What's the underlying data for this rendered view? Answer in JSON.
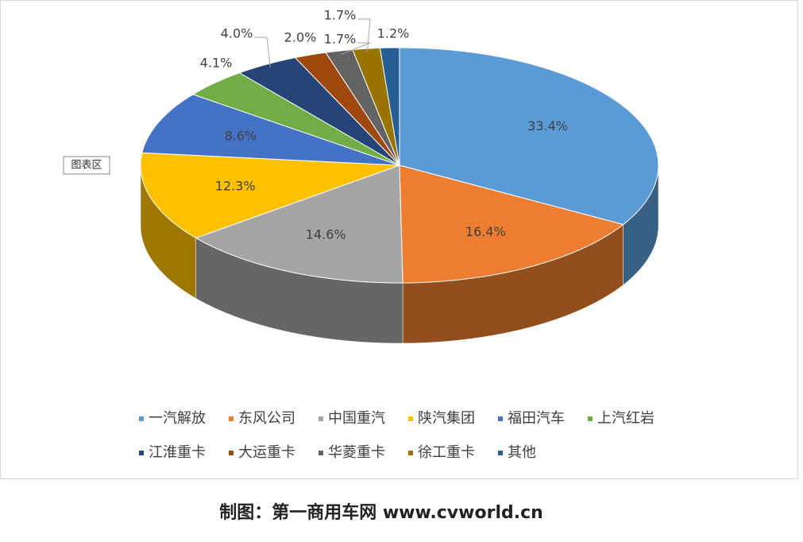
{
  "chart_data": {
    "type": "pie3d",
    "categories": [
      "一汽解放",
      "东风公司",
      "中国重汽",
      "陕汽集团",
      "福田汽车",
      "上汽红岩",
      "江淮重卡",
      "大运重卡",
      "华菱重卡",
      "徐工重卡",
      "其他"
    ],
    "values": [
      33.4,
      16.4,
      14.6,
      12.3,
      8.6,
      4.1,
      4.0,
      2.0,
      1.7,
      1.7,
      1.2
    ],
    "value_labels": [
      "33.4%",
      "16.4%",
      "14.6%",
      "12.3%",
      "8.6%",
      "4.1%",
      "4.0%",
      "2.0%",
      "1.7%",
      "1.7%",
      "1.2%"
    ],
    "colors": [
      "#5b9bd5",
      "#ed7d31",
      "#a5a5a5",
      "#ffc000",
      "#4472c4",
      "#70ad47",
      "#264478",
      "#9e480e",
      "#636363",
      "#997300",
      "#255e91"
    ],
    "tooltip": "图表区"
  },
  "caption": "制图：第一商用车网 www.cvworld.cn"
}
